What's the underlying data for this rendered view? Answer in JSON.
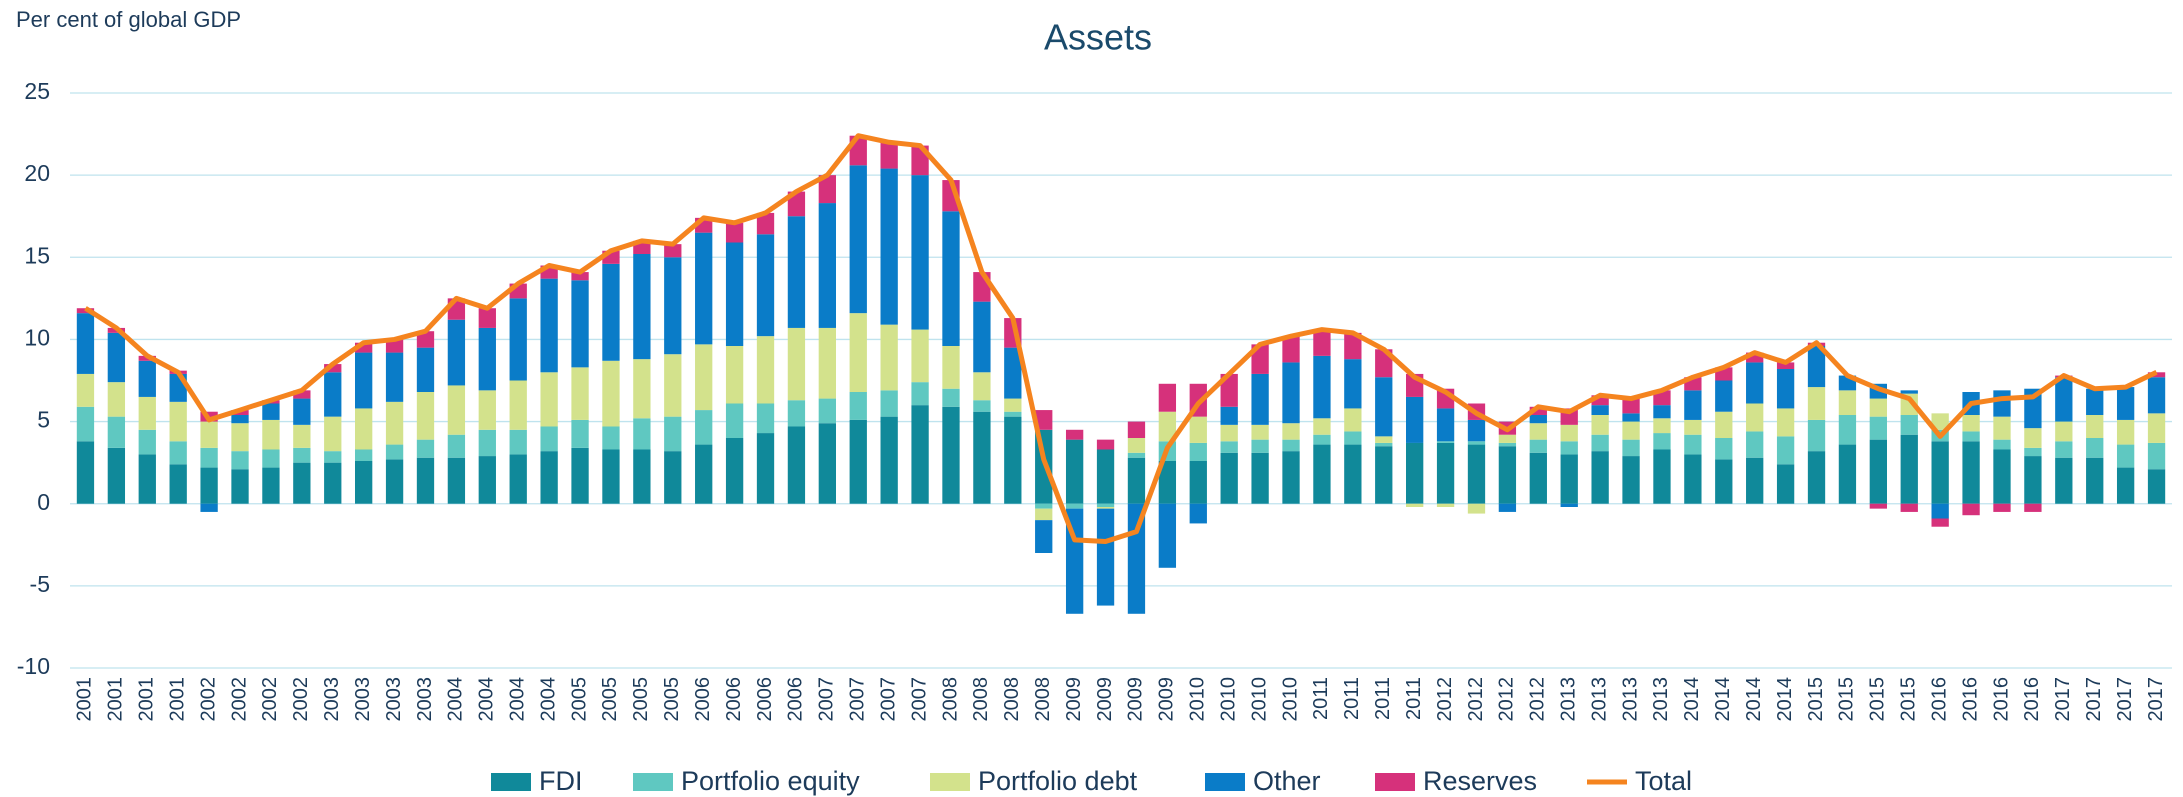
{
  "chart_data": {
    "type": "stacked_bar_line",
    "title": "Assets",
    "y_label": "Per cent of global GDP",
    "categories": [
      "2001",
      "2001",
      "2001",
      "2001",
      "2002",
      "2002",
      "2002",
      "2002",
      "2003",
      "2003",
      "2003",
      "2003",
      "2004",
      "2004",
      "2004",
      "2004",
      "2005",
      "2005",
      "2005",
      "2005",
      "2006",
      "2006",
      "2006",
      "2006",
      "2007",
      "2007",
      "2007",
      "2007",
      "2008",
      "2008",
      "2008",
      "2008",
      "2009",
      "2009",
      "2009",
      "2009",
      "2010",
      "2010",
      "2010",
      "2010",
      "2011",
      "2011",
      "2011",
      "2011",
      "2012",
      "2012",
      "2012",
      "2012",
      "2013",
      "2013",
      "2013",
      "2013",
      "2014",
      "2014",
      "2014",
      "2014",
      "2015",
      "2015",
      "2015",
      "2015",
      "2016",
      "2016",
      "2016",
      "2016",
      "2017",
      "2017",
      "2017",
      "2017"
    ],
    "series": [
      {
        "name": "FDI",
        "color": "#10899a",
        "values": [
          3.8,
          3.4,
          3.0,
          2.4,
          2.2,
          2.1,
          2.2,
          2.5,
          2.5,
          2.6,
          2.7,
          2.8,
          2.8,
          2.9,
          3.0,
          3.2,
          3.4,
          3.3,
          3.3,
          3.2,
          3.6,
          4.0,
          4.3,
          4.7,
          4.9,
          5.1,
          5.3,
          6.0,
          5.9,
          5.6,
          5.3,
          4.5,
          3.9,
          3.3,
          2.8,
          2.6,
          2.6,
          3.1,
          3.1,
          3.2,
          3.6,
          3.6,
          3.5,
          3.7,
          3.7,
          3.6,
          3.5,
          3.1,
          3.0,
          3.2,
          2.9,
          3.3,
          3.0,
          2.7,
          2.8,
          2.4,
          3.2,
          3.6,
          3.9,
          4.2,
          3.8,
          3.8,
          3.3,
          2.9,
          2.8,
          2.8,
          2.2,
          2.1
        ]
      },
      {
        "name": "Portfolio equity",
        "color": "#5fc8c1",
        "values": [
          2.1,
          1.9,
          1.5,
          1.4,
          1.2,
          1.1,
          1.1,
          0.9,
          0.7,
          0.7,
          0.9,
          1.1,
          1.4,
          1.6,
          1.5,
          1.5,
          1.7,
          1.4,
          1.9,
          2.1,
          2.1,
          2.1,
          1.8,
          1.6,
          1.5,
          1.7,
          1.6,
          1.4,
          1.1,
          0.7,
          0.3,
          -0.3,
          -0.3,
          -0.2,
          0.3,
          1.2,
          1.1,
          0.7,
          0.8,
          0.7,
          0.6,
          0.8,
          0.2,
          0,
          0.1,
          0.2,
          0.2,
          0.8,
          0.8,
          1.0,
          1.0,
          1.0,
          1.2,
          1.3,
          1.6,
          1.7,
          1.9,
          1.8,
          1.4,
          1.2,
          0.7,
          0.6,
          0.6,
          0.5,
          1.0,
          1.2,
          1.4,
          1.6
        ]
      },
      {
        "name": "Portfolio debt",
        "color": "#d3e28c",
        "values": [
          2.0,
          2.1,
          2.0,
          2.4,
          1.6,
          1.7,
          1.8,
          1.4,
          2.1,
          2.5,
          2.6,
          2.9,
          3.0,
          2.4,
          3.0,
          3.3,
          3.2,
          4.0,
          3.6,
          3.8,
          4.0,
          3.5,
          4.1,
          4.4,
          4.3,
          4.8,
          4.0,
          3.2,
          2.6,
          1.7,
          0.8,
          -0.7,
          0,
          -0.1,
          0.9,
          1.8,
          1.6,
          1.0,
          0.9,
          1.0,
          1.0,
          1.4,
          0.4,
          -0.2,
          -0.2,
          -0.6,
          0.5,
          1.0,
          1.0,
          1.2,
          1.1,
          0.9,
          0.9,
          1.6,
          1.7,
          1.7,
          2.0,
          1.5,
          1.1,
          1.3,
          1.0,
          1.0,
          1.4,
          1.2,
          1.2,
          1.4,
          1.5,
          1.8
        ]
      },
      {
        "name": "Other",
        "color": "#0a7cc8",
        "values": [
          3.7,
          3.0,
          2.2,
          1.7,
          -0.5,
          0.5,
          1.0,
          1.6,
          2.7,
          3.4,
          3.0,
          2.7,
          4.0,
          3.8,
          5.0,
          5.7,
          5.3,
          5.9,
          6.4,
          5.9,
          6.8,
          6.3,
          6.2,
          6.8,
          7.6,
          9.0,
          9.5,
          9.4,
          8.2,
          4.3,
          3.1,
          -2.0,
          -6.4,
          -5.9,
          -6.7,
          -3.9,
          -1.2,
          1.1,
          3.1,
          3.7,
          3.8,
          3.0,
          3.6,
          2.8,
          2.0,
          1.3,
          -0.5,
          0.5,
          -0.2,
          0.6,
          0.5,
          0.8,
          1.8,
          1.9,
          2.5,
          2.4,
          2.5,
          0.9,
          0.9,
          0.2,
          -0.9,
          1.4,
          1.6,
          2.4,
          2.7,
          1.6,
          2.0,
          2.2
        ]
      },
      {
        "name": "Reserves",
        "color": "#d6317b",
        "values": [
          0.3,
          0.3,
          0.3,
          0.2,
          0.6,
          0.3,
          0.2,
          0.5,
          0.5,
          0.6,
          0.8,
          1.0,
          1.3,
          1.2,
          0.9,
          0.8,
          0.5,
          0.8,
          0.8,
          0.8,
          0.9,
          1.2,
          1.3,
          1.5,
          1.7,
          1.8,
          1.6,
          1.8,
          1.9,
          1.8,
          1.8,
          1.2,
          0.6,
          0.6,
          1.0,
          1.7,
          2.0,
          2.0,
          1.8,
          1.6,
          1.6,
          1.6,
          1.7,
          1.4,
          1.2,
          1.0,
          0.8,
          0.5,
          1.0,
          0.6,
          0.9,
          0.9,
          0.8,
          0.8,
          0.6,
          0.4,
          0.2,
          0,
          -0.3,
          -0.5,
          -0.5,
          -0.7,
          -0.5,
          -0.5,
          0.1,
          0,
          0,
          0.3
        ]
      }
    ],
    "line_series": {
      "name": "Total",
      "color": "#f5841f",
      "values": [
        11.9,
        10.7,
        9.0,
        8.0,
        5.1,
        5.7,
        6.3,
        6.9,
        8.5,
        9.8,
        10.0,
        10.5,
        12.5,
        11.9,
        13.4,
        14.5,
        14.1,
        15.4,
        16.0,
        15.8,
        17.4,
        17.1,
        17.7,
        19.0,
        20.0,
        22.4,
        22.0,
        21.8,
        19.7,
        14.1,
        11.3,
        2.7,
        -2.2,
        -2.3,
        -1.7,
        3.4,
        6.1,
        7.9,
        9.7,
        10.2,
        10.6,
        10.4,
        9.4,
        7.7,
        6.8,
        5.5,
        4.5,
        5.9,
        5.6,
        6.6,
        6.4,
        6.9,
        7.7,
        8.3,
        9.2,
        8.6,
        9.8,
        7.8,
        7.0,
        6.4,
        4.1,
        6.1,
        6.4,
        6.5,
        7.8,
        7.0,
        7.1,
        8.0
      ]
    },
    "ylim": [
      -10,
      25
    ],
    "yticks": [
      25,
      20,
      15,
      10,
      5,
      0,
      -5,
      -10
    ],
    "grid": true,
    "legend": "bottom"
  }
}
